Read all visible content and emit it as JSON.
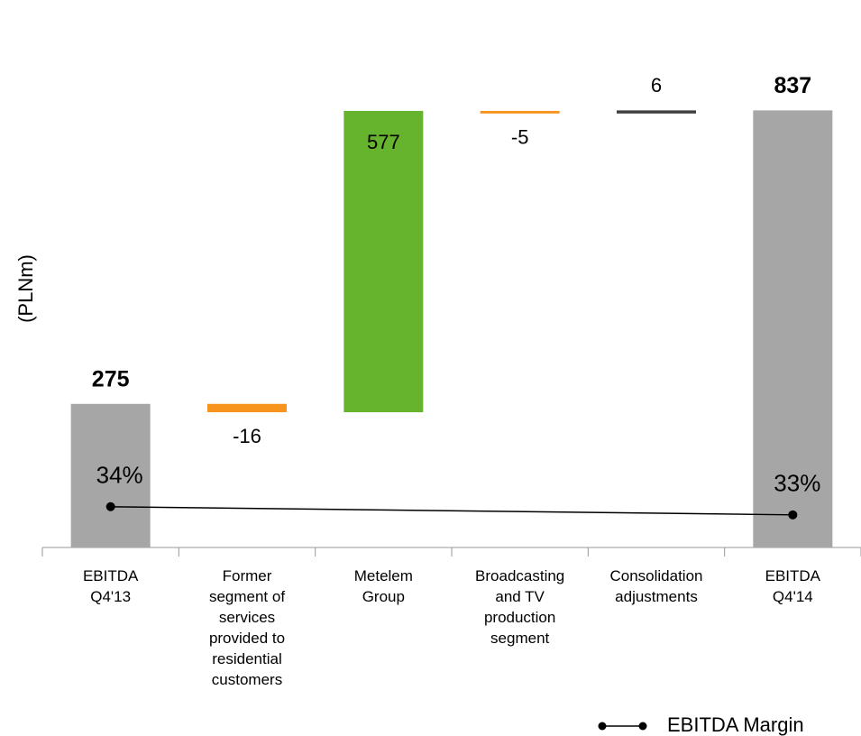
{
  "chart_data": {
    "type": "waterfall",
    "y_label": "(PLNm)",
    "categories": [
      "EBITDA\nQ4'13",
      "Former\nsegment of\nservices\nprovided to\nresidential\ncustomers",
      "Metelem\nGroup",
      "Broadcasting\nand TV\nproduction\nsegment",
      "Consolidation\nadjustments",
      "EBITDA\nQ4'14"
    ],
    "values": [
      275,
      -16,
      577,
      -5,
      6,
      837
    ],
    "totals": [
      true,
      false,
      false,
      false,
      false,
      true
    ],
    "colors": [
      "#a6a6a6",
      "#f7941d",
      "#66b32e",
      "#f7941d",
      "#404040",
      "#a6a6a6"
    ],
    "ylim": [
      0,
      1000
    ],
    "series": [
      {
        "name": "EBITDA Margin",
        "color": "#000000",
        "axis": "y2",
        "values": [
          34,
          null,
          null,
          null,
          null,
          33
        ],
        "value_labels": [
          "34%",
          null,
          null,
          null,
          null,
          "33%"
        ]
      }
    ],
    "y2lim": [
      29,
      93
    ],
    "legend": "bottom-right"
  }
}
